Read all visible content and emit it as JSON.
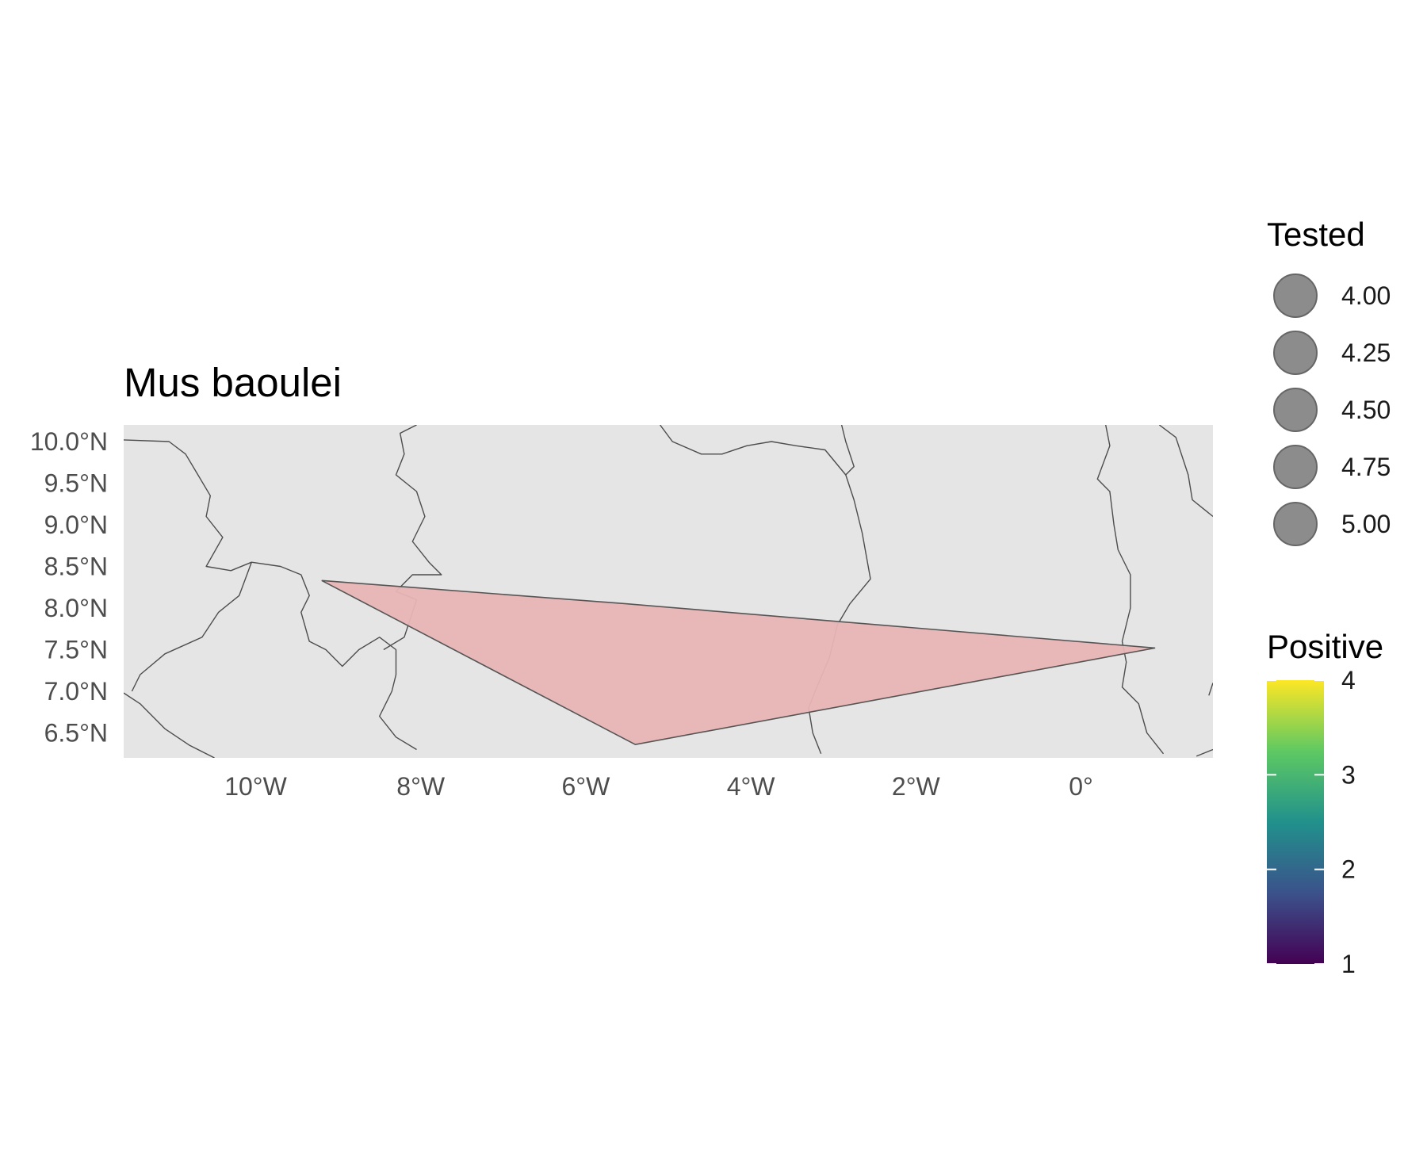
{
  "chart_data": {
    "type": "map",
    "title": "Mus baoulei",
    "xlim": [
      -11.6,
      1.6
    ],
    "ylim": [
      6.2,
      10.2
    ],
    "x_ticks": [
      {
        "value": -10,
        "label": "10°W"
      },
      {
        "value": -8,
        "label": "8°W"
      },
      {
        "value": -6,
        "label": "6°W"
      },
      {
        "value": -4,
        "label": "4°W"
      },
      {
        "value": -2,
        "label": "2°W"
      },
      {
        "value": 0,
        "label": "0°"
      }
    ],
    "y_ticks": [
      {
        "value": 10.0,
        "label": "10.0°N"
      },
      {
        "value": 9.5,
        "label": "9.5°N"
      },
      {
        "value": 9.0,
        "label": "9.0°N"
      },
      {
        "value": 8.5,
        "label": "8.5°N"
      },
      {
        "value": 8.0,
        "label": "8.0°N"
      },
      {
        "value": 7.5,
        "label": "7.5°N"
      },
      {
        "value": 7.0,
        "label": "7.0°N"
      },
      {
        "value": 6.5,
        "label": "6.5°N"
      }
    ],
    "range_polygon": {
      "fill": "#e8b4b4",
      "stroke": "#555555",
      "points": [
        [
          -9.2,
          8.33
        ],
        [
          -5.5,
          8.05
        ],
        [
          0.9,
          7.52
        ],
        [
          -5.4,
          6.36
        ],
        [
          -9.2,
          8.33
        ]
      ]
    },
    "borders": [
      [
        [
          -11.6,
          10.02
        ],
        [
          -11.05,
          10.0
        ],
        [
          -10.85,
          9.85
        ],
        [
          -10.7,
          9.6
        ],
        [
          -10.55,
          9.35
        ],
        [
          -10.6,
          9.1
        ],
        [
          -10.4,
          8.85
        ],
        [
          -10.6,
          8.5
        ],
        [
          -10.3,
          8.45
        ],
        [
          -10.05,
          8.55
        ],
        [
          -9.7,
          8.5
        ],
        [
          -9.45,
          8.4
        ],
        [
          -9.35,
          8.15
        ],
        [
          -9.45,
          7.95
        ],
        [
          -9.35,
          7.6
        ],
        [
          -9.15,
          7.5
        ],
        [
          -8.95,
          7.3
        ],
        [
          -8.75,
          7.5
        ],
        [
          -8.5,
          7.65
        ],
        [
          -8.3,
          7.5
        ],
        [
          -8.3,
          7.2
        ],
        [
          -8.35,
          7.0
        ],
        [
          -8.5,
          6.7
        ],
        [
          -8.3,
          6.45
        ],
        [
          -8.05,
          6.3
        ]
      ],
      [
        [
          -10.05,
          8.55
        ],
        [
          -10.2,
          8.15
        ],
        [
          -10.45,
          7.95
        ],
        [
          -10.65,
          7.65
        ],
        [
          -11.1,
          7.45
        ],
        [
          -11.4,
          7.2
        ],
        [
          -11.5,
          7.0
        ]
      ],
      [
        [
          -11.6,
          6.98
        ],
        [
          -11.4,
          6.85
        ],
        [
          -11.1,
          6.55
        ],
        [
          -10.8,
          6.35
        ],
        [
          -10.5,
          6.2
        ]
      ],
      [
        [
          -8.05,
          10.2
        ],
        [
          -8.25,
          10.1
        ],
        [
          -8.2,
          9.85
        ],
        [
          -8.3,
          9.6
        ],
        [
          -8.05,
          9.4
        ],
        [
          -7.95,
          9.1
        ],
        [
          -8.1,
          8.8
        ],
        [
          -7.9,
          8.55
        ],
        [
          -7.75,
          8.4
        ],
        [
          -8.1,
          8.4
        ],
        [
          -8.3,
          8.2
        ],
        [
          -8.05,
          8.1
        ],
        [
          -8.2,
          7.65
        ],
        [
          -8.45,
          7.5
        ]
      ],
      [
        [
          -5.1,
          10.2
        ],
        [
          -4.95,
          10.0
        ],
        [
          -4.6,
          9.85
        ],
        [
          -4.35,
          9.85
        ],
        [
          -4.05,
          9.95
        ],
        [
          -3.75,
          10.0
        ],
        [
          -3.45,
          9.95
        ],
        [
          -3.1,
          9.9
        ],
        [
          -2.85,
          9.6
        ],
        [
          -2.75,
          9.3
        ],
        [
          -2.65,
          8.9
        ],
        [
          -2.55,
          8.35
        ],
        [
          -2.8,
          8.05
        ],
        [
          -2.95,
          7.8
        ],
        [
          -3.05,
          7.4
        ],
        [
          -3.2,
          7.05
        ],
        [
          -3.3,
          6.8
        ],
        [
          -3.25,
          6.5
        ],
        [
          -3.15,
          6.25
        ]
      ],
      [
        [
          -2.9,
          10.2
        ],
        [
          -2.85,
          10.0
        ],
        [
          -2.75,
          9.7
        ],
        [
          -2.85,
          9.6
        ]
      ],
      [
        [
          0.3,
          10.2
        ],
        [
          0.35,
          9.95
        ],
        [
          0.2,
          9.55
        ],
        [
          0.35,
          9.4
        ],
        [
          0.4,
          9.0
        ],
        [
          0.45,
          8.7
        ],
        [
          0.6,
          8.4
        ],
        [
          0.6,
          8.0
        ],
        [
          0.5,
          7.6
        ],
        [
          0.55,
          7.35
        ],
        [
          0.5,
          7.05
        ],
        [
          0.7,
          6.85
        ],
        [
          0.8,
          6.5
        ],
        [
          1.0,
          6.25
        ]
      ],
      [
        [
          0.95,
          10.2
        ],
        [
          1.15,
          10.05
        ],
        [
          1.3,
          9.6
        ],
        [
          1.35,
          9.3
        ],
        [
          1.6,
          9.1
        ]
      ],
      [
        [
          1.6,
          6.3
        ],
        [
          1.4,
          6.22
        ]
      ],
      [
        [
          1.6,
          7.1
        ],
        [
          1.55,
          6.95
        ]
      ]
    ],
    "legend_size": {
      "title": "Tested",
      "items": [
        "4.00",
        "4.25",
        "4.50",
        "4.75",
        "5.00"
      ],
      "swatch_color": "#8c8c8c"
    },
    "legend_color": {
      "title": "Positive",
      "range": [
        1,
        4
      ],
      "ticks": [
        "1",
        "2",
        "3",
        "4"
      ],
      "palette": [
        "#440154",
        "#3b528b",
        "#21918c",
        "#5ec962",
        "#fde725"
      ]
    },
    "panel_color": "#e5e5e5",
    "grid": false
  }
}
